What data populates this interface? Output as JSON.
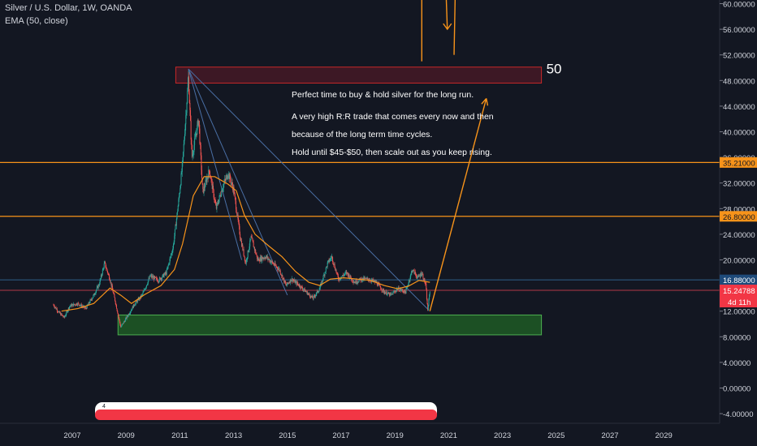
{
  "header": {
    "symbol_line": "Silver / U.S. Dollar, 1W, OANDA",
    "indicator_line": "EMA (50, close)"
  },
  "colors": {
    "background": "#131722",
    "candle_up": "#26a69a",
    "candle_down": "#ef5350",
    "ema": "#f7931a",
    "level_line": "#f7931a",
    "resistance_zone": "#8b1a2b",
    "support_zone": "#1e5a25",
    "price_label_blue": "#2962ff",
    "price_label_red": "#f23645",
    "trendline": "#4a6fa5",
    "text": "#d1d4dc",
    "white": "#ffffff"
  },
  "annotations": {
    "target_label": "50",
    "text_lines": [
      "Perfect time to buy & hold silver for the long run.",
      "A very high R:R trade that comes every now and then",
      "because of the long term time cycles.",
      "Hold until $45-$50, then scale out as you keep rising."
    ]
  },
  "price_labels": {
    "level_upper": "35.21000",
    "level_lower": "26.80000",
    "blue_line": "16.88000",
    "current": "15.24788",
    "countdown": "4d 11h"
  },
  "scrollbar_marker": "4",
  "chart_data": {
    "type": "candlestick",
    "title": "Silver / U.S. Dollar, 1W, OANDA",
    "indicator": "EMA (50, close)",
    "x_ticks": [
      "2007",
      "2009",
      "2011",
      "2013",
      "2015",
      "2017",
      "2019",
      "2021",
      "2023",
      "2025",
      "2027",
      "2029"
    ],
    "y_ticks": [
      "-4.00000",
      "0.00000",
      "4.00000",
      "8.00000",
      "12.00000",
      "16.00000",
      "20.00000",
      "24.00000",
      "28.00000",
      "32.00000",
      "36.00000",
      "40.00000",
      "44.00000",
      "48.00000",
      "52.00000",
      "56.00000",
      "60.00000"
    ],
    "ylim": [
      -4,
      60
    ],
    "xlim": [
      2006,
      2030.5
    ],
    "price_path": [
      [
        2006.3,
        13.0
      ],
      [
        2006.5,
        11.8
      ],
      [
        2006.7,
        11.0
      ],
      [
        2006.9,
        12.8
      ],
      [
        2007.2,
        13.2
      ],
      [
        2007.5,
        12.4
      ],
      [
        2007.8,
        14.5
      ],
      [
        2008.0,
        16.2
      ],
      [
        2008.2,
        19.5
      ],
      [
        2008.4,
        17.0
      ],
      [
        2008.6,
        13.5
      ],
      [
        2008.8,
        9.5
      ],
      [
        2008.95,
        10.5
      ],
      [
        2009.3,
        13.0
      ],
      [
        2009.6,
        14.5
      ],
      [
        2009.9,
        17.5
      ],
      [
        2010.2,
        16.8
      ],
      [
        2010.5,
        18.0
      ],
      [
        2010.75,
        22.0
      ],
      [
        2010.95,
        29.0
      ],
      [
        2011.1,
        35.0
      ],
      [
        2011.32,
        48.5
      ],
      [
        2011.45,
        36.0
      ],
      [
        2011.7,
        42.0
      ],
      [
        2011.85,
        30.5
      ],
      [
        2012.1,
        34.0
      ],
      [
        2012.35,
        28.0
      ],
      [
        2012.6,
        31.5
      ],
      [
        2012.8,
        33.5
      ],
      [
        2013.0,
        31.0
      ],
      [
        2013.25,
        23.5
      ],
      [
        2013.45,
        19.5
      ],
      [
        2013.65,
        23.5
      ],
      [
        2013.9,
        20.0
      ],
      [
        2014.2,
        20.5
      ],
      [
        2014.45,
        19.5
      ],
      [
        2014.7,
        18.5
      ],
      [
        2014.95,
        16.0
      ],
      [
        2015.15,
        17.0
      ],
      [
        2015.45,
        16.0
      ],
      [
        2015.7,
        15.0
      ],
      [
        2015.95,
        14.0
      ],
      [
        2016.2,
        15.5
      ],
      [
        2016.5,
        19.5
      ],
      [
        2016.65,
        20.5
      ],
      [
        2016.9,
        17.0
      ],
      [
        2017.2,
        18.0
      ],
      [
        2017.5,
        16.5
      ],
      [
        2017.75,
        17.0
      ],
      [
        2018.0,
        17.0
      ],
      [
        2018.3,
        16.5
      ],
      [
        2018.6,
        15.0
      ],
      [
        2018.85,
        14.5
      ],
      [
        2019.1,
        15.5
      ],
      [
        2019.4,
        15.0
      ],
      [
        2019.65,
        18.5
      ],
      [
        2019.85,
        17.2
      ],
      [
        2020.0,
        18.0
      ],
      [
        2020.15,
        16.0
      ],
      [
        2020.22,
        12.0
      ],
      [
        2020.3,
        15.2
      ]
    ],
    "ema_path": [
      [
        2006.6,
        12.0
      ],
      [
        2007.2,
        12.4
      ],
      [
        2007.8,
        13.2
      ],
      [
        2008.4,
        15.6
      ],
      [
        2008.8,
        14.5
      ],
      [
        2009.2,
        13.2
      ],
      [
        2009.7,
        14.6
      ],
      [
        2010.3,
        16.0
      ],
      [
        2010.8,
        18.5
      ],
      [
        2011.1,
        22.5
      ],
      [
        2011.5,
        30.0
      ],
      [
        2011.9,
        33.0
      ],
      [
        2012.3,
        33.0
      ],
      [
        2012.8,
        31.8
      ],
      [
        2013.1,
        30.8
      ],
      [
        2013.4,
        27.0
      ],
      [
        2013.8,
        24.0
      ],
      [
        2014.3,
        22.2
      ],
      [
        2014.8,
        20.5
      ],
      [
        2015.3,
        18.2
      ],
      [
        2015.8,
        16.5
      ],
      [
        2016.2,
        16.0
      ],
      [
        2016.6,
        17.0
      ],
      [
        2017.1,
        17.2
      ],
      [
        2017.6,
        17.0
      ],
      [
        2018.1,
        16.8
      ],
      [
        2018.6,
        16.0
      ],
      [
        2019.1,
        15.5
      ],
      [
        2019.5,
        15.9
      ],
      [
        2019.9,
        16.8
      ],
      [
        2020.3,
        16.5
      ]
    ],
    "horizontal_levels": [
      35.21,
      26.8,
      16.88,
      15.24788
    ],
    "zones": [
      {
        "label": "resistance",
        "x_range": [
          2010.85,
          2024.45
        ],
        "y_range": [
          47.6,
          50.1
        ]
      },
      {
        "label": "support",
        "x_range": [
          2008.7,
          2024.45
        ],
        "y_range": [
          8.3,
          11.4
        ]
      }
    ],
    "trendlines": [
      {
        "from": [
          2011.32,
          49.8
        ],
        "to": [
          2020.25,
          12.2
        ]
      },
      {
        "from": [
          2011.32,
          49.8
        ],
        "to": [
          2015.0,
          14.5
        ]
      },
      {
        "from": [
          2011.32,
          49.8
        ],
        "to": [
          2013.3,
          20.0
        ]
      }
    ],
    "projection_arrow": {
      "from": [
        2020.3,
        12.0
      ],
      "to": [
        2022.4,
        45.2
      ]
    },
    "offchart_arrows": [
      {
        "from": [
          2020.0,
          51.0
        ],
        "to": [
          2020.0,
          74.0
        ]
      },
      {
        "from": [
          2020.8,
          74.0
        ],
        "to": [
          2020.95,
          56.0
        ]
      },
      {
        "from": [
          2021.2,
          52.0
        ],
        "to": [
          2021.3,
          74.0
        ]
      }
    ],
    "grid": false
  }
}
